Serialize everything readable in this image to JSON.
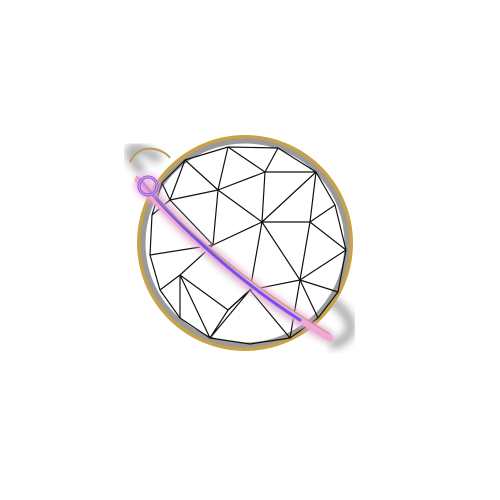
{
  "emblem": {
    "icon": "geodesic-globe-with-orbit-ring-icon",
    "colors": {
      "background": "#ffffff",
      "sphere_outline_outer": "#c8a24a",
      "sphere_outline_inner": "#9a9a9a",
      "mesh_lines": "#111111",
      "ring_pink": "#f2a6d8",
      "ring_violet": "#6e55f0",
      "ring_shadow": "#6f6f6f",
      "ring_gold": "#b89a5a"
    }
  }
}
